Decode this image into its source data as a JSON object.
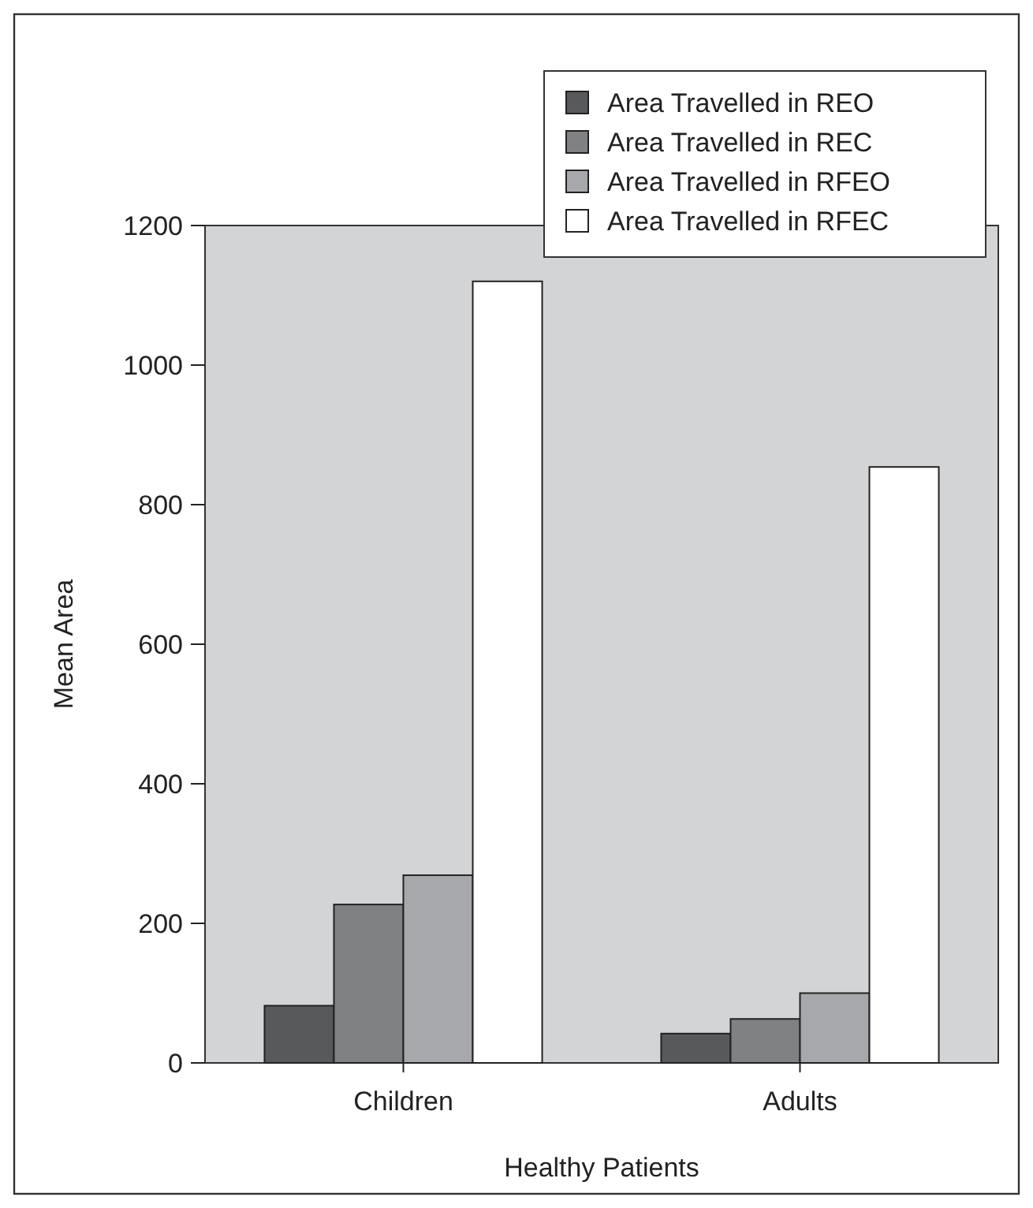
{
  "chart_data": {
    "type": "bar",
    "xlabel": "Healthy Patients",
    "ylabel": "Mean Area",
    "categories": [
      "Children",
      "Adults"
    ],
    "series": [
      {
        "name": "Area Travelled in REO",
        "color": "#58595b",
        "values": [
          82,
          42
        ]
      },
      {
        "name": "Area Travelled in REC",
        "color": "#808183",
        "values": [
          227,
          63
        ]
      },
      {
        "name": "Area Travelled in RFEO",
        "color": "#a7a8ab",
        "values": [
          269,
          100
        ]
      },
      {
        "name": "Area Travelled in RFEC",
        "color": "#ffffff",
        "values": [
          1120,
          854
        ]
      }
    ],
    "ylim": [
      0,
      1200
    ],
    "yticks": [
      0,
      200,
      400,
      600,
      800,
      1000,
      1200
    ],
    "grid": false,
    "legend": "top right"
  }
}
